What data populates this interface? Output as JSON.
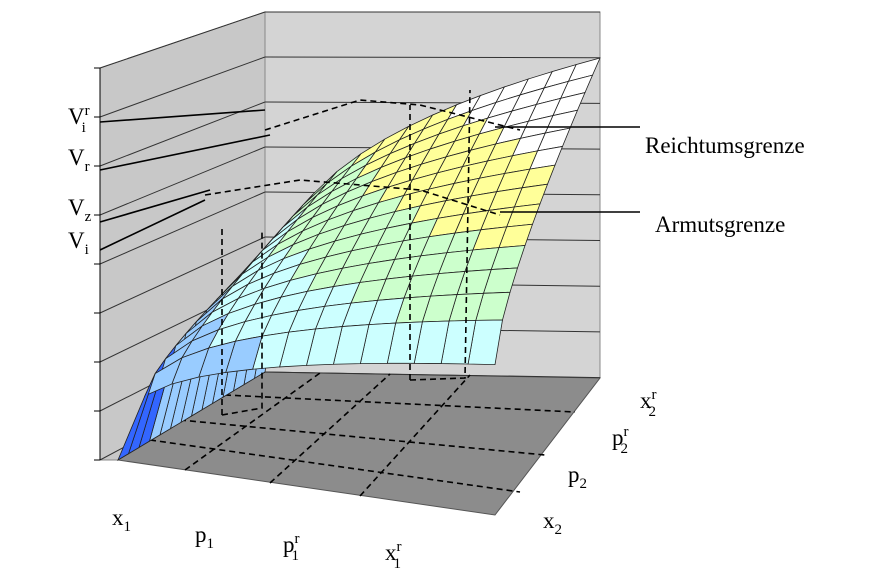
{
  "labels": {
    "y_axis": [
      {
        "base": "V",
        "sub": "i",
        "sup": "r"
      },
      {
        "base": "V",
        "sub": "r"
      },
      {
        "base": "V",
        "sub": "z"
      },
      {
        "base": "V",
        "sub": "i"
      }
    ],
    "x1_axis": [
      {
        "base": "x",
        "sub": "1"
      },
      {
        "base": "p",
        "sub": "1"
      },
      {
        "base": "p",
        "sub": "1",
        "sup": "r"
      },
      {
        "base": "x",
        "sub": "1",
        "sup": "r"
      }
    ],
    "x2_axis": [
      {
        "base": "x",
        "sub": "2"
      },
      {
        "base": "p",
        "sub": "2"
      },
      {
        "base": "p",
        "sub": "2",
        "sup": "r"
      },
      {
        "base": "x",
        "sub": "2",
        "sup": "r"
      }
    ]
  },
  "annotations": [
    "Reichtumsgrenze",
    "Armutsgrenze"
  ]
}
